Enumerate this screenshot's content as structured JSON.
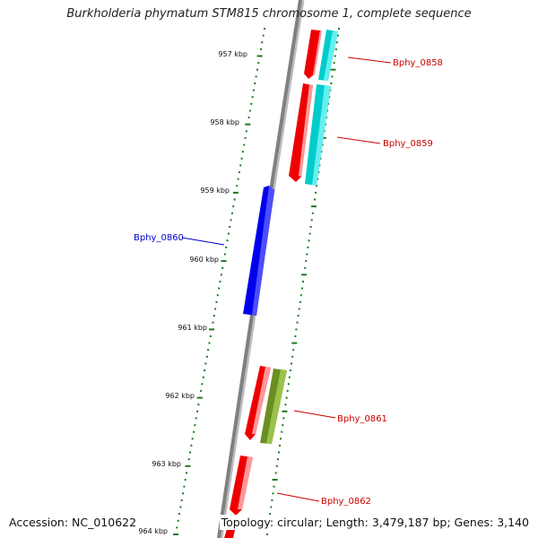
{
  "title": "Burkholderia phymatum STM815 chromosome 1, complete sequence",
  "footer": {
    "accession": "Accession: NC_010622",
    "summary": "Topology: circular; Length: 3,479,187 bp; Genes: 3,140"
  },
  "colors": {
    "backbone": "#808080",
    "ticks": "#1a7a1a",
    "gene_red": "#ee0000",
    "gene_cyan": "#00cccc",
    "gene_blue": "#0000ee",
    "gene_olive": "#6b8e23",
    "label_red": "#cc0000",
    "label_blue": "#0000cc"
  },
  "scale_labels": [
    "957 kbp",
    "958 kbp",
    "959 kbp",
    "960 kbp",
    "961 kbp",
    "962 kbp",
    "963 kbp",
    "964 kbp"
  ],
  "gene_labels": [
    {
      "name": "Bphy_0858",
      "color": "label_red"
    },
    {
      "name": "Bphy_0859",
      "color": "label_red"
    },
    {
      "name": "Bphy_0860",
      "color": "label_blue"
    },
    {
      "name": "Bphy_0861",
      "color": "label_red"
    },
    {
      "name": "Bphy_0862",
      "color": "label_red"
    }
  ]
}
